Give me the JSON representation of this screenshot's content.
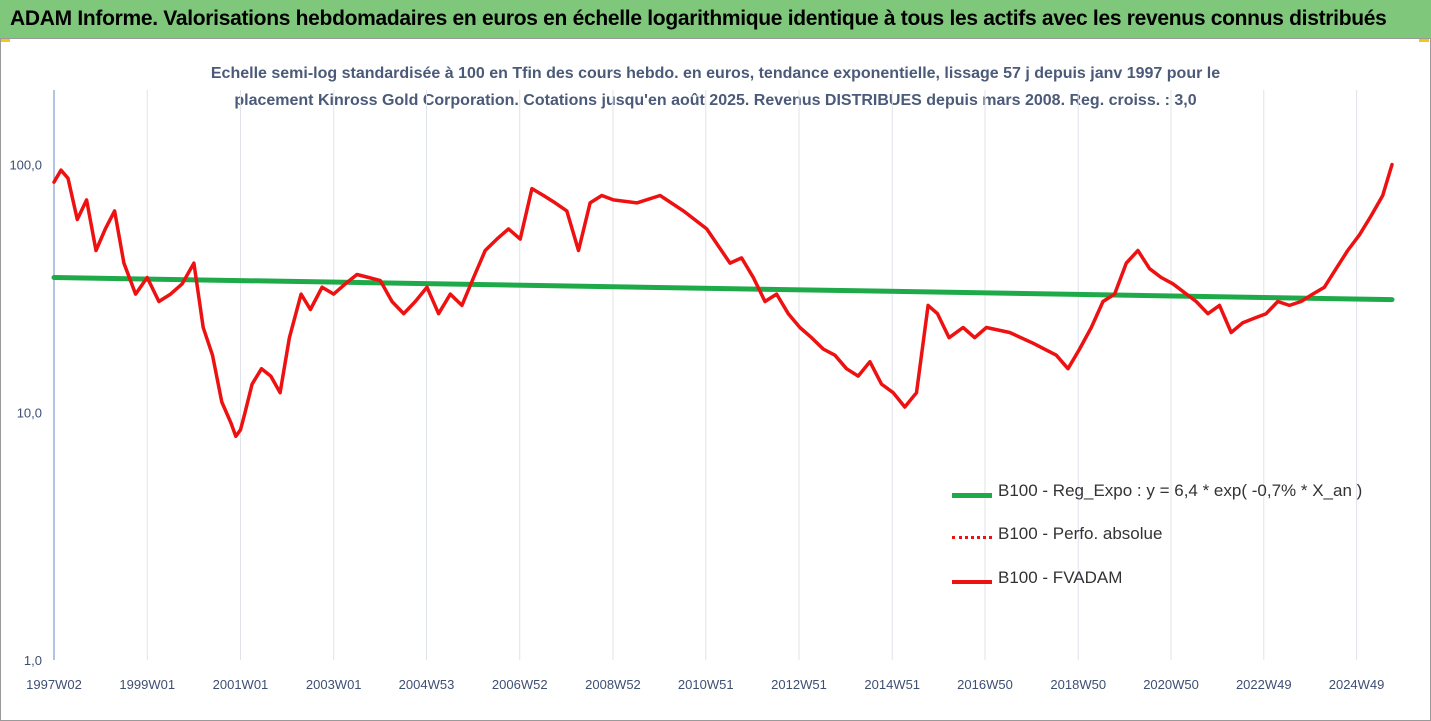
{
  "header": {
    "title": "ADAM Informe. Valorisations hebdomadaires en euros en échelle logarithmique identique à tous les actifs avec les revenus connus distribués"
  },
  "colors": {
    "banner": "#7fc77a",
    "series_fvadam": "#ee1111",
    "series_perf": "#ee1111",
    "series_reg": "#1faa4a",
    "gridline": "#dfe3ea",
    "axis_text": "#3e4f74"
  },
  "chart_data": {
    "type": "line",
    "title_line1": "Echelle semi-log standardisée à 100 en Tfin des cours hebdo. en euros, tendance exponentielle, lissage 57 j depuis janv 1997 pour le",
    "title_line2": "placement Kinross Gold Corporation. Cotations jusqu'en août 2025. Revenus DISTRIBUES depuis mars 2008. Reg. croiss. : 3,0",
    "xlabel": "",
    "ylabel": "",
    "y_scale": "log",
    "ylim": [
      1,
      200
    ],
    "y_ticks": [
      1,
      10,
      100
    ],
    "y_tick_labels": [
      "1,0",
      "10,0",
      "100,0"
    ],
    "xlim": [
      1997.0,
      2025.7
    ],
    "x_ticks": [
      1997.0,
      1999.0,
      2001.0,
      2003.0,
      2004.99,
      2006.99,
      2008.99,
      2010.98,
      2012.98,
      2014.98,
      2016.97,
      2018.97,
      2020.96,
      2022.95,
      2024.94
    ],
    "x_tick_labels": [
      "1997W02",
      "1999W01",
      "2001W01",
      "2003W01",
      "2004W53",
      "2006W52",
      "2008W52",
      "2010W51",
      "2012W51",
      "2014W51",
      "2016W50",
      "2018W50",
      "2020W50",
      "2022W49",
      "2024W49"
    ],
    "grid": true,
    "legend_placement": "bottom-right",
    "series": [
      {
        "name": "B100 - Reg_Expo : y = 6,4 * exp( -0,7% *  X_an )",
        "style": "solid-thick",
        "x": [
          1997.0,
          2025.7
        ],
        "values": [
          35.0,
          28.5
        ]
      },
      {
        "name": "B100 - Perfo. absolue",
        "style": "dotted",
        "x": [],
        "values": []
      },
      {
        "name": "B100 - FVADAM",
        "style": "solid",
        "x": [
          1997.0,
          1997.15,
          1997.3,
          1997.5,
          1997.7,
          1997.9,
          1998.1,
          1998.3,
          1998.5,
          1998.75,
          1999.0,
          1999.25,
          1999.5,
          1999.75,
          2000.0,
          2000.2,
          2000.4,
          2000.6,
          2000.8,
          2000.9,
          2001.0,
          2001.1,
          2001.25,
          2001.45,
          2001.65,
          2001.85,
          2002.05,
          2002.3,
          2002.5,
          2002.75,
          2003.0,
          2003.25,
          2003.5,
          2003.75,
          2004.0,
          2004.25,
          2004.5,
          2004.75,
          2005.0,
          2005.25,
          2005.5,
          2005.75,
          2006.0,
          2006.25,
          2006.5,
          2006.75,
          2007.0,
          2007.25,
          2007.5,
          2007.75,
          2008.0,
          2008.25,
          2008.5,
          2008.75,
          2009.0,
          2009.5,
          2010.0,
          2010.5,
          2011.0,
          2011.5,
          2011.75,
          2012.0,
          2012.25,
          2012.5,
          2012.75,
          2013.0,
          2013.25,
          2013.5,
          2013.75,
          2014.0,
          2014.25,
          2014.5,
          2014.75,
          2015.0,
          2015.25,
          2015.5,
          2015.75,
          2015.95,
          2016.2,
          2016.5,
          2016.75,
          2017.0,
          2017.5,
          2018.0,
          2018.5,
          2018.75,
          2019.0,
          2019.25,
          2019.5,
          2019.75,
          2020.0,
          2020.25,
          2020.5,
          2020.75,
          2021.0,
          2021.5,
          2021.75,
          2022.0,
          2022.25,
          2022.5,
          2022.75,
          2023.0,
          2023.25,
          2023.5,
          2023.75,
          2024.0,
          2024.25,
          2024.5,
          2024.75,
          2025.0,
          2025.25,
          2025.5,
          2025.7
        ],
        "values": [
          85,
          95,
          88,
          60,
          72,
          45,
          55,
          65,
          40,
          30,
          35,
          28,
          30,
          33,
          40,
          22,
          17,
          11,
          9,
          8,
          8.5,
          10,
          13,
          15,
          14,
          12,
          20,
          30,
          26,
          32,
          30,
          33,
          36,
          35,
          34,
          28,
          25,
          28,
          32,
          25,
          30,
          27,
          35,
          45,
          50,
          55,
          50,
          80,
          75,
          70,
          65,
          45,
          70,
          75,
          72,
          70,
          75,
          65,
          55,
          40,
          42,
          35,
          28,
          30,
          25,
          22,
          20,
          18,
          17,
          15,
          14,
          16,
          13,
          12,
          10.5,
          12,
          27,
          25,
          20,
          22,
          20,
          22,
          21,
          19,
          17,
          15,
          18,
          22,
          28,
          30,
          40,
          45,
          38,
          35,
          33,
          28,
          25,
          27,
          21,
          23,
          24,
          25,
          28,
          27,
          28,
          30,
          32,
          38,
          45,
          52,
          62,
          75,
          100
        ]
      }
    ]
  }
}
